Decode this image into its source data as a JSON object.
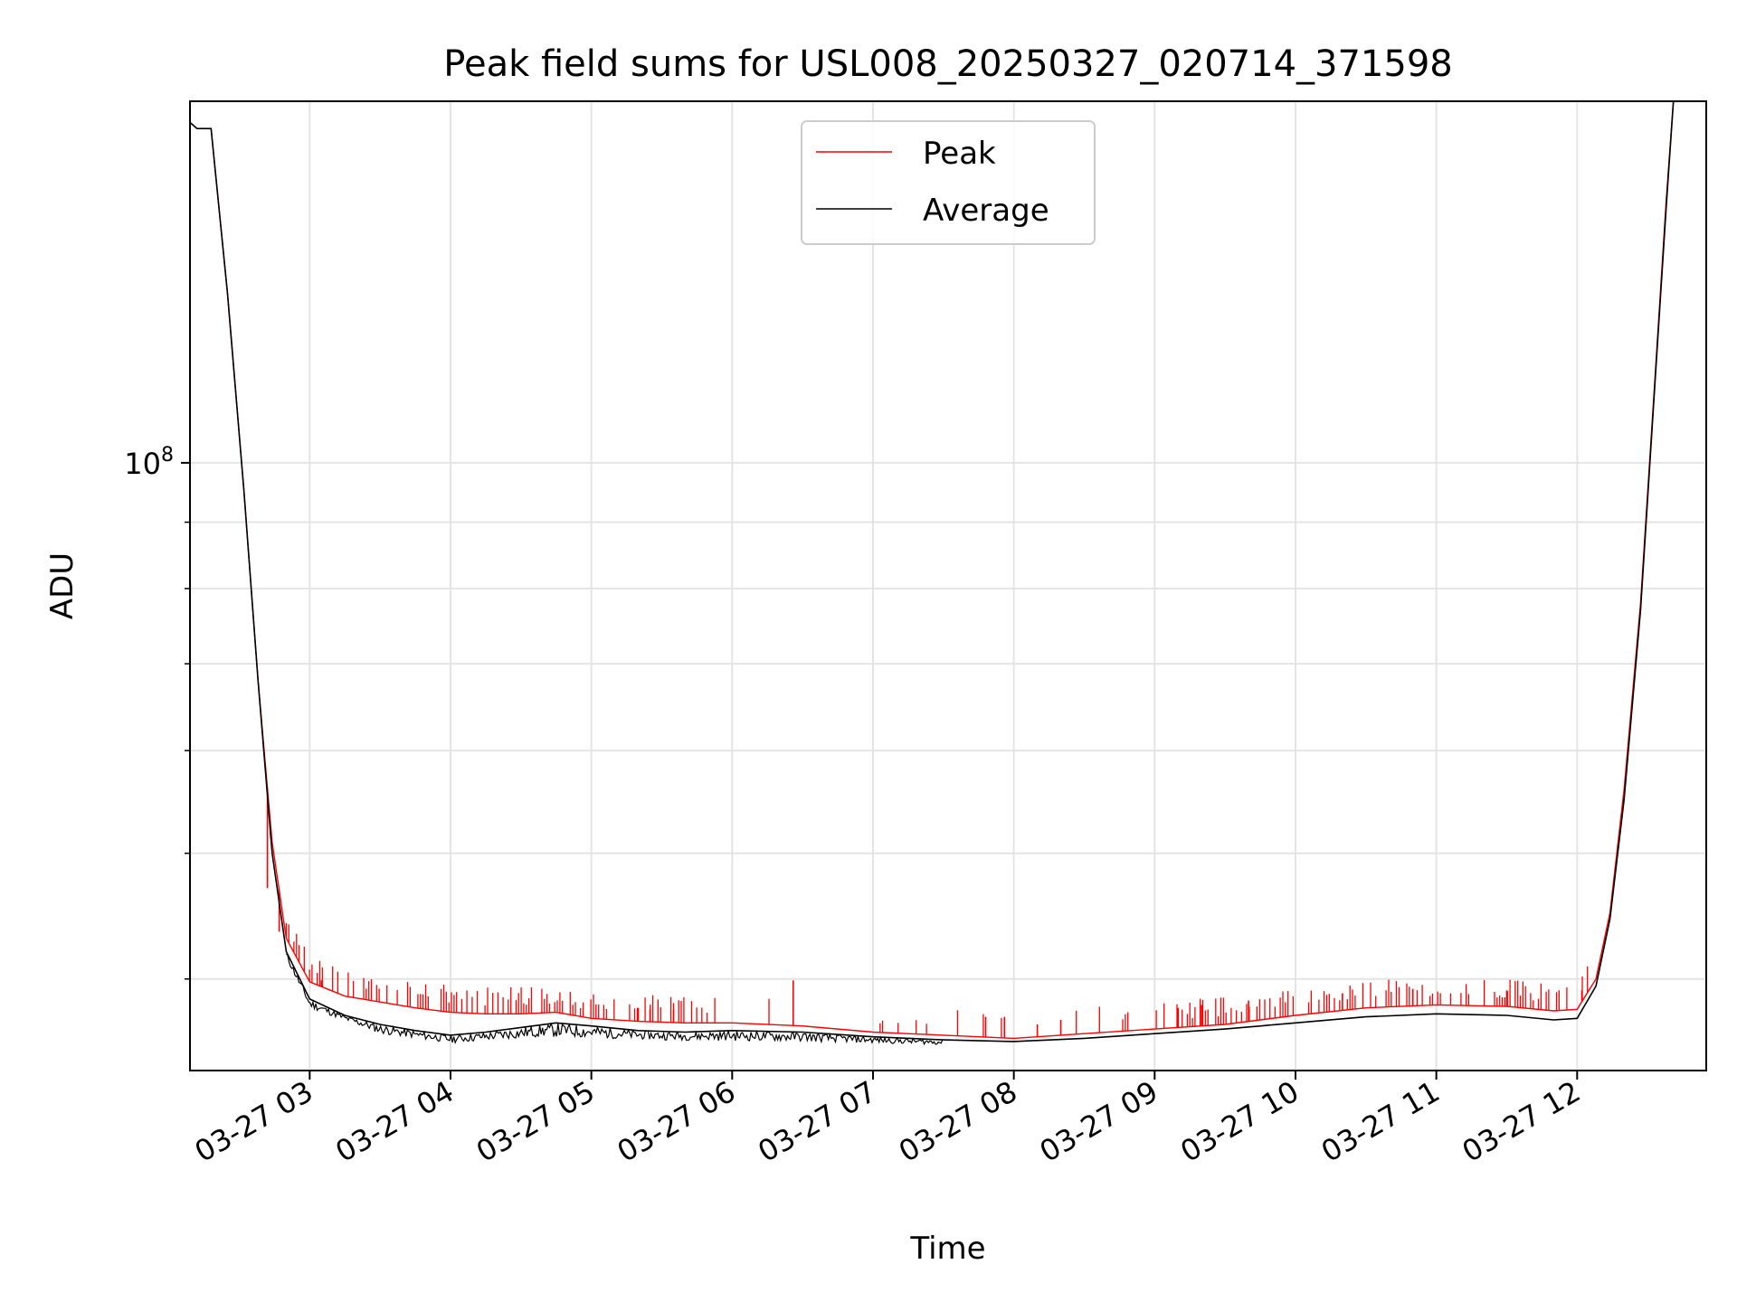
{
  "chart_data": {
    "type": "line",
    "title": "Peak field sums for USL008_20250327_020714_371598",
    "xlabel": "Time",
    "ylabel": "ADU",
    "y_scale": "log",
    "ylim": [
      34000000,
      190000000
    ],
    "xlim": [
      "2025-03-27 02:09",
      "2025-03-27 12:55"
    ],
    "grid": true,
    "legend_position": "top-center",
    "x_ticks": [
      {
        "t": "2025-03-27 03:00",
        "label": "03-27 03"
      },
      {
        "t": "2025-03-27 04:00",
        "label": "03-27 04"
      },
      {
        "t": "2025-03-27 05:00",
        "label": "03-27 05"
      },
      {
        "t": "2025-03-27 06:00",
        "label": "03-27 06"
      },
      {
        "t": "2025-03-27 07:00",
        "label": "03-27 07"
      },
      {
        "t": "2025-03-27 08:00",
        "label": "03-27 08"
      },
      {
        "t": "2025-03-27 09:00",
        "label": "03-27 09"
      },
      {
        "t": "2025-03-27 10:00",
        "label": "03-27 10"
      },
      {
        "t": "2025-03-27 11:00",
        "label": "03-27 11"
      },
      {
        "t": "2025-03-27 12:00",
        "label": "03-27 12"
      }
    ],
    "y_major_ticks": [
      {
        "value": 100000000,
        "label_base": "10",
        "label_exp": "8"
      }
    ],
    "y_minor_ticks": [
      40000000,
      50000000,
      60000000,
      70000000,
      80000000,
      90000000,
      200000000
    ],
    "series": [
      {
        "name": "Peak",
        "color": "#ff0000",
        "points": [
          [
            "2025-03-27 02:09",
            183000000
          ],
          [
            "2025-03-27 02:12",
            181000000
          ],
          [
            "2025-03-27 02:18",
            181000000
          ],
          [
            "2025-03-27 02:25",
            135000000
          ],
          [
            "2025-03-27 02:32",
            95000000
          ],
          [
            "2025-03-27 02:38",
            68000000
          ],
          [
            "2025-03-27 02:44",
            51000000
          ],
          [
            "2025-03-27 02:50",
            43000000
          ],
          [
            "2025-03-27 03:00",
            39800000
          ],
          [
            "2025-03-27 03:15",
            38800000
          ],
          [
            "2025-03-27 03:30",
            38400000
          ],
          [
            "2025-03-27 03:45",
            38000000
          ],
          [
            "2025-03-27 04:00",
            37700000
          ],
          [
            "2025-03-27 04:15",
            37600000
          ],
          [
            "2025-03-27 04:30",
            37600000
          ],
          [
            "2025-03-27 04:45",
            37700000
          ],
          [
            "2025-03-27 05:00",
            37300000
          ],
          [
            "2025-03-27 05:20",
            37100000
          ],
          [
            "2025-03-27 05:40",
            37000000
          ],
          [
            "2025-03-27 06:00",
            37000000
          ],
          [
            "2025-03-27 06:30",
            36800000
          ],
          [
            "2025-03-27 07:00",
            36400000
          ],
          [
            "2025-03-27 07:30",
            36200000
          ],
          [
            "2025-03-27 08:00",
            36000000
          ],
          [
            "2025-03-27 08:30",
            36300000
          ],
          [
            "2025-03-27 09:00",
            36600000
          ],
          [
            "2025-03-27 09:30",
            36900000
          ],
          [
            "2025-03-27 10:00",
            37500000
          ],
          [
            "2025-03-27 10:30",
            38000000
          ],
          [
            "2025-03-27 11:00",
            38200000
          ],
          [
            "2025-03-27 11:30",
            38100000
          ],
          [
            "2025-03-27 11:50",
            37800000
          ],
          [
            "2025-03-27 12:00",
            37900000
          ],
          [
            "2025-03-27 12:08",
            40000000
          ],
          [
            "2025-03-27 12:14",
            45000000
          ],
          [
            "2025-03-27 12:20",
            56000000
          ],
          [
            "2025-03-27 12:27",
            78000000
          ],
          [
            "2025-03-27 12:33",
            115000000
          ],
          [
            "2025-03-27 12:38",
            160000000
          ],
          [
            "2025-03-27 12:41",
            190000000
          ]
        ],
        "spikes": [
          [
            "2025-03-27 02:42",
            47000000
          ],
          [
            "2025-03-27 02:47",
            43500000
          ],
          [
            "2025-03-27 03:05",
            39900000
          ],
          [
            "2025-03-27 05:20",
            38000000
          ],
          [
            "2025-03-27 05:25",
            37900000
          ],
          [
            "2025-03-27 05:35",
            37900000
          ],
          [
            "2025-03-27 06:26",
            39900000
          ],
          [
            "2025-03-27 07:48",
            37400000
          ],
          [
            "2025-03-27 07:56",
            37400000
          ],
          [
            "2025-03-27 08:10",
            36900000
          ],
          [
            "2025-03-27 08:20",
            37200000
          ],
          [
            "2025-03-27 09:10",
            38000000
          ],
          [
            "2025-03-27 09:20",
            38200000
          ],
          [
            "2025-03-27 09:40",
            38500000
          ],
          [
            "2025-03-27 10:20",
            39000000
          ],
          [
            "2025-03-27 10:50",
            39300000
          ],
          [
            "2025-03-27 11:30",
            39200000
          ],
          [
            "2025-03-27 12:02",
            39200000
          ]
        ]
      },
      {
        "name": "Average",
        "color": "#000000",
        "points": [
          [
            "2025-03-27 02:09",
            183000000
          ],
          [
            "2025-03-27 02:12",
            181000000
          ],
          [
            "2025-03-27 02:18",
            181000000
          ],
          [
            "2025-03-27 02:25",
            135000000
          ],
          [
            "2025-03-27 02:32",
            95000000
          ],
          [
            "2025-03-27 02:38",
            68000000
          ],
          [
            "2025-03-27 02:44",
            50000000
          ],
          [
            "2025-03-27 02:50",
            42000000
          ],
          [
            "2025-03-27 03:00",
            38600000
          ],
          [
            "2025-03-27 03:15",
            37500000
          ],
          [
            "2025-03-27 03:30",
            36900000
          ],
          [
            "2025-03-27 03:45",
            36500000
          ],
          [
            "2025-03-27 04:00",
            36200000
          ],
          [
            "2025-03-27 04:15",
            36400000
          ],
          [
            "2025-03-27 04:30",
            36700000
          ],
          [
            "2025-03-27 04:45",
            37000000
          ],
          [
            "2025-03-27 05:00",
            36800000
          ],
          [
            "2025-03-27 05:20",
            36500000
          ],
          [
            "2025-03-27 05:40",
            36400000
          ],
          [
            "2025-03-27 06:00",
            36500000
          ],
          [
            "2025-03-27 06:30",
            36400000
          ],
          [
            "2025-03-27 07:00",
            36100000
          ],
          [
            "2025-03-27 07:30",
            35900000
          ],
          [
            "2025-03-27 08:00",
            35800000
          ],
          [
            "2025-03-27 08:30",
            36000000
          ],
          [
            "2025-03-27 09:00",
            36300000
          ],
          [
            "2025-03-27 09:30",
            36600000
          ],
          [
            "2025-03-27 10:00",
            37000000
          ],
          [
            "2025-03-27 10:30",
            37400000
          ],
          [
            "2025-03-27 11:00",
            37600000
          ],
          [
            "2025-03-27 11:30",
            37500000
          ],
          [
            "2025-03-27 11:50",
            37200000
          ],
          [
            "2025-03-27 12:00",
            37300000
          ],
          [
            "2025-03-27 12:08",
            39500000
          ],
          [
            "2025-03-27 12:14",
            44500000
          ],
          [
            "2025-03-27 12:20",
            55000000
          ],
          [
            "2025-03-27 12:27",
            77000000
          ],
          [
            "2025-03-27 12:33",
            114000000
          ],
          [
            "2025-03-27 12:38",
            158000000
          ],
          [
            "2025-03-27 12:41",
            190000000
          ]
        ],
        "noise_band": [
          [
            "2025-03-27 02:50",
            41500000
          ],
          [
            "2025-03-27 03:00",
            38000000
          ],
          [
            "2025-03-27 03:30",
            36300000
          ],
          [
            "2025-03-27 04:00",
            35700000
          ],
          [
            "2025-03-27 04:40",
            36100000
          ],
          [
            "2025-03-27 05:30",
            35900000
          ],
          [
            "2025-03-27 06:30",
            35800000
          ],
          [
            "2025-03-27 07:30",
            35600000
          ]
        ]
      }
    ]
  }
}
